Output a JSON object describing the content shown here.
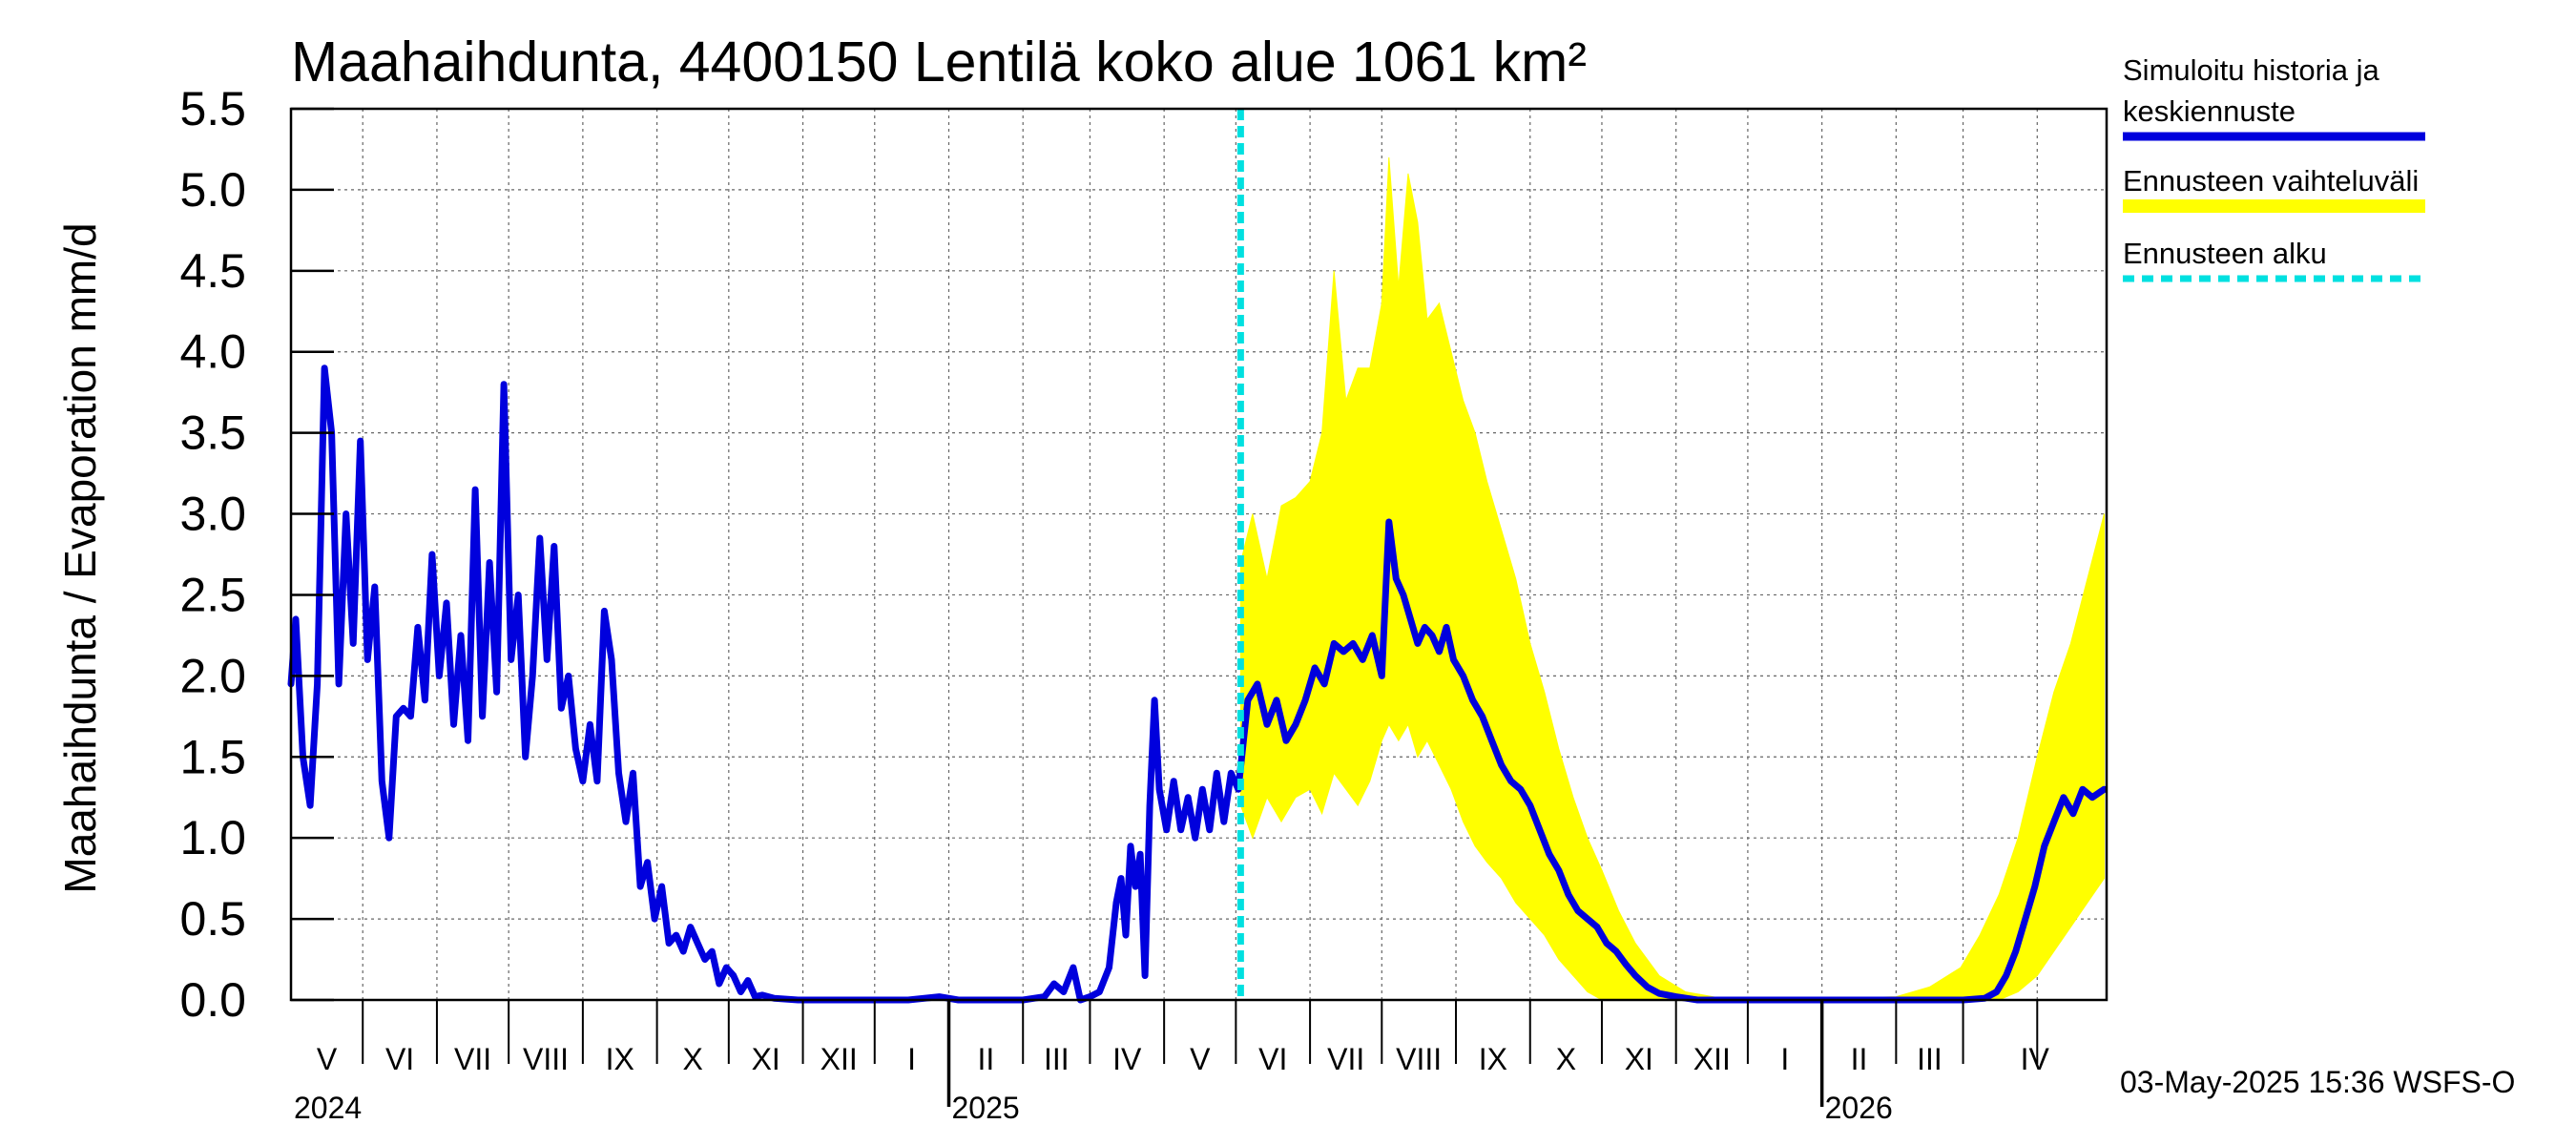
{
  "chart_data": {
    "type": "line",
    "title": "Maahaihdunta, 4400150 Lentilä koko alue 1061 km²",
    "ylabel": "Maahaihdunta / Evaporation   mm/d",
    "ylim": [
      0,
      5.5
    ],
    "yticks": [
      "0.0",
      "0.5",
      "1.0",
      "1.5",
      "2.0",
      "2.5",
      "3.0",
      "3.5",
      "4.0",
      "4.5",
      "5.0",
      "5.5"
    ],
    "xlim": [
      "2024-04-01",
      "2026-04-30"
    ],
    "grid": true,
    "month_labels": [
      "V",
      "VI",
      "VII",
      "VIII",
      "IX",
      "X",
      "XI",
      "XII",
      "I",
      "II",
      "III",
      "IV",
      "V",
      "VI",
      "VII",
      "VIII",
      "IX",
      "X",
      "XI",
      "XII",
      "I",
      "II",
      "III",
      "IV"
    ],
    "year_labels": [
      "2024",
      "2025",
      "2026"
    ],
    "forecast_start": "2025-05-03",
    "legend_position": "right",
    "legend": [
      {
        "label": "Simuloitu historia ja",
        "label2": "keskiennuste",
        "color": "#0000dd",
        "style": "solid"
      },
      {
        "label": "Ennusteen vaihteluväli",
        "color": "#ffff00",
        "style": "band"
      },
      {
        "label": "Ennusteen alku",
        "color": "#00e0e0",
        "style": "dashed"
      }
    ],
    "footer": "03-May-2025 15:36 WSFS-O",
    "series": [
      {
        "name": "Simuloitu historia ja keskiennuste",
        "points": [
          [
            "2024-04-01",
            1.95
          ],
          [
            "2024-04-03",
            2.35
          ],
          [
            "2024-04-06",
            1.5
          ],
          [
            "2024-04-09",
            1.2
          ],
          [
            "2024-04-12",
            1.95
          ],
          [
            "2024-04-15",
            3.9
          ],
          [
            "2024-04-18",
            3.5
          ],
          [
            "2024-04-21",
            1.95
          ],
          [
            "2024-04-24",
            3.0
          ],
          [
            "2024-04-27",
            2.2
          ],
          [
            "2024-04-30",
            3.45
          ],
          [
            "2024-05-03",
            2.1
          ],
          [
            "2024-05-06",
            2.55
          ],
          [
            "2024-05-09",
            1.35
          ],
          [
            "2024-05-12",
            1.0
          ],
          [
            "2024-05-15",
            1.75
          ],
          [
            "2024-05-18",
            1.8
          ],
          [
            "2024-05-21",
            1.75
          ],
          [
            "2024-05-24",
            2.3
          ],
          [
            "2024-05-27",
            1.85
          ],
          [
            "2024-05-30",
            2.75
          ],
          [
            "2024-06-02",
            2.0
          ],
          [
            "2024-06-05",
            2.45
          ],
          [
            "2024-06-08",
            1.7
          ],
          [
            "2024-06-11",
            2.25
          ],
          [
            "2024-06-14",
            1.6
          ],
          [
            "2024-06-17",
            3.15
          ],
          [
            "2024-06-20",
            1.75
          ],
          [
            "2024-06-23",
            2.7
          ],
          [
            "2024-06-26",
            1.9
          ],
          [
            "2024-06-29",
            3.8
          ],
          [
            "2024-07-02",
            2.1
          ],
          [
            "2024-07-05",
            2.5
          ],
          [
            "2024-07-08",
            1.5
          ],
          [
            "2024-07-11",
            2.0
          ],
          [
            "2024-07-14",
            2.85
          ],
          [
            "2024-07-17",
            2.1
          ],
          [
            "2024-07-20",
            2.8
          ],
          [
            "2024-07-23",
            1.8
          ],
          [
            "2024-07-26",
            2.0
          ],
          [
            "2024-07-29",
            1.55
          ],
          [
            "2024-08-01",
            1.35
          ],
          [
            "2024-08-04",
            1.7
          ],
          [
            "2024-08-07",
            1.35
          ],
          [
            "2024-08-10",
            2.4
          ],
          [
            "2024-08-13",
            2.1
          ],
          [
            "2024-08-16",
            1.4
          ],
          [
            "2024-08-19",
            1.1
          ],
          [
            "2024-08-22",
            1.4
          ],
          [
            "2024-08-25",
            0.7
          ],
          [
            "2024-08-28",
            0.85
          ],
          [
            "2024-08-31",
            0.5
          ],
          [
            "2024-09-03",
            0.7
          ],
          [
            "2024-09-06",
            0.35
          ],
          [
            "2024-09-09",
            0.4
          ],
          [
            "2024-09-12",
            0.3
          ],
          [
            "2024-09-15",
            0.45
          ],
          [
            "2024-09-18",
            0.35
          ],
          [
            "2024-09-21",
            0.25
          ],
          [
            "2024-09-24",
            0.3
          ],
          [
            "2024-09-27",
            0.1
          ],
          [
            "2024-09-30",
            0.2
          ],
          [
            "2024-10-03",
            0.15
          ],
          [
            "2024-10-06",
            0.05
          ],
          [
            "2024-10-09",
            0.12
          ],
          [
            "2024-10-12",
            0.02
          ],
          [
            "2024-10-15",
            0.03
          ],
          [
            "2024-10-20",
            0.01
          ],
          [
            "2024-10-30",
            0.0
          ],
          [
            "2024-11-15",
            0.0
          ],
          [
            "2024-12-01",
            0.0
          ],
          [
            "2024-12-15",
            0.0
          ],
          [
            "2024-12-28",
            0.02
          ],
          [
            "2025-01-05",
            0.0
          ],
          [
            "2025-01-20",
            0.0
          ],
          [
            "2025-02-01",
            0.0
          ],
          [
            "2025-02-10",
            0.02
          ],
          [
            "2025-02-14",
            0.1
          ],
          [
            "2025-02-18",
            0.05
          ],
          [
            "2025-02-22",
            0.2
          ],
          [
            "2025-02-25",
            0.0
          ],
          [
            "2025-03-01",
            0.02
          ],
          [
            "2025-03-05",
            0.05
          ],
          [
            "2025-03-09",
            0.2
          ],
          [
            "2025-03-12",
            0.6
          ],
          [
            "2025-03-14",
            0.75
          ],
          [
            "2025-03-16",
            0.4
          ],
          [
            "2025-03-18",
            0.95
          ],
          [
            "2025-03-20",
            0.7
          ],
          [
            "2025-03-22",
            0.9
          ],
          [
            "2025-03-24",
            0.15
          ],
          [
            "2025-03-26",
            1.2
          ],
          [
            "2025-03-28",
            1.85
          ],
          [
            "2025-03-30",
            1.3
          ],
          [
            "2025-04-02",
            1.05
          ],
          [
            "2025-04-05",
            1.35
          ],
          [
            "2025-04-08",
            1.05
          ],
          [
            "2025-04-11",
            1.25
          ],
          [
            "2025-04-14",
            1.0
          ],
          [
            "2025-04-17",
            1.3
          ],
          [
            "2025-04-20",
            1.05
          ],
          [
            "2025-04-23",
            1.4
          ],
          [
            "2025-04-26",
            1.1
          ],
          [
            "2025-04-29",
            1.4
          ],
          [
            "2025-05-02",
            1.3
          ],
          [
            "2025-05-06",
            1.85
          ],
          [
            "2025-05-10",
            1.95
          ],
          [
            "2025-05-14",
            1.7
          ],
          [
            "2025-05-18",
            1.85
          ],
          [
            "2025-05-22",
            1.6
          ],
          [
            "2025-05-26",
            1.7
          ],
          [
            "2025-05-30",
            1.85
          ],
          [
            "2025-06-03",
            2.05
          ],
          [
            "2025-06-07",
            1.95
          ],
          [
            "2025-06-11",
            2.2
          ],
          [
            "2025-06-15",
            2.15
          ],
          [
            "2025-06-19",
            2.2
          ],
          [
            "2025-06-23",
            2.1
          ],
          [
            "2025-06-27",
            2.25
          ],
          [
            "2025-07-01",
            2.0
          ],
          [
            "2025-07-04",
            2.95
          ],
          [
            "2025-07-07",
            2.6
          ],
          [
            "2025-07-10",
            2.5
          ],
          [
            "2025-07-13",
            2.35
          ],
          [
            "2025-07-16",
            2.2
          ],
          [
            "2025-07-19",
            2.3
          ],
          [
            "2025-07-22",
            2.25
          ],
          [
            "2025-07-25",
            2.15
          ],
          [
            "2025-07-28",
            2.3
          ],
          [
            "2025-07-31",
            2.1
          ],
          [
            "2025-08-04",
            2.0
          ],
          [
            "2025-08-08",
            1.85
          ],
          [
            "2025-08-12",
            1.75
          ],
          [
            "2025-08-16",
            1.6
          ],
          [
            "2025-08-20",
            1.45
          ],
          [
            "2025-08-24",
            1.35
          ],
          [
            "2025-08-28",
            1.3
          ],
          [
            "2025-09-01",
            1.2
          ],
          [
            "2025-09-05",
            1.05
          ],
          [
            "2025-09-09",
            0.9
          ],
          [
            "2025-09-13",
            0.8
          ],
          [
            "2025-09-17",
            0.65
          ],
          [
            "2025-09-21",
            0.55
          ],
          [
            "2025-09-25",
            0.5
          ],
          [
            "2025-09-29",
            0.45
          ],
          [
            "2025-10-03",
            0.35
          ],
          [
            "2025-10-07",
            0.3
          ],
          [
            "2025-10-11",
            0.22
          ],
          [
            "2025-10-15",
            0.15
          ],
          [
            "2025-10-20",
            0.08
          ],
          [
            "2025-10-25",
            0.04
          ],
          [
            "2025-11-01",
            0.02
          ],
          [
            "2025-11-10",
            0.0
          ],
          [
            "2025-12-01",
            0.0
          ],
          [
            "2026-01-01",
            0.0
          ],
          [
            "2026-02-01",
            0.0
          ],
          [
            "2026-03-01",
            0.0
          ],
          [
            "2026-03-10",
            0.01
          ],
          [
            "2026-03-15",
            0.05
          ],
          [
            "2026-03-19",
            0.15
          ],
          [
            "2026-03-23",
            0.3
          ],
          [
            "2026-03-27",
            0.5
          ],
          [
            "2026-03-31",
            0.7
          ],
          [
            "2026-04-04",
            0.95
          ],
          [
            "2026-04-08",
            1.1
          ],
          [
            "2026-04-12",
            1.25
          ],
          [
            "2026-04-16",
            1.15
          ],
          [
            "2026-04-20",
            1.3
          ],
          [
            "2026-04-24",
            1.25
          ],
          [
            "2026-04-29",
            1.3
          ]
        ]
      }
    ],
    "forecast_band": {
      "name": "Ennusteen vaihteluväli",
      "points": [
        [
          "2025-05-03",
          1.2,
          2.7
        ],
        [
          "2025-05-08",
          1.0,
          3.0
        ],
        [
          "2025-05-14",
          1.25,
          2.6
        ],
        [
          "2025-05-20",
          1.1,
          3.05
        ],
        [
          "2025-05-26",
          1.25,
          3.1
        ],
        [
          "2025-06-01",
          1.3,
          3.2
        ],
        [
          "2025-06-06",
          1.15,
          3.5
        ],
        [
          "2025-06-11",
          1.4,
          4.5
        ],
        [
          "2025-06-16",
          1.3,
          3.7
        ],
        [
          "2025-06-21",
          1.2,
          3.9
        ],
        [
          "2025-06-26",
          1.35,
          3.9
        ],
        [
          "2025-07-01",
          1.6,
          4.3
        ],
        [
          "2025-07-04",
          1.7,
          5.2
        ],
        [
          "2025-07-08",
          1.6,
          4.4
        ],
        [
          "2025-07-12",
          1.7,
          5.1
        ],
        [
          "2025-07-16",
          1.5,
          4.8
        ],
        [
          "2025-07-20",
          1.6,
          4.2
        ],
        [
          "2025-07-25",
          1.45,
          4.3
        ],
        [
          "2025-07-30",
          1.3,
          4.0
        ],
        [
          "2025-08-04",
          1.1,
          3.7
        ],
        [
          "2025-08-09",
          0.95,
          3.5
        ],
        [
          "2025-08-14",
          0.85,
          3.2
        ],
        [
          "2025-08-20",
          0.75,
          2.9
        ],
        [
          "2025-08-26",
          0.6,
          2.6
        ],
        [
          "2025-09-01",
          0.5,
          2.2
        ],
        [
          "2025-09-07",
          0.4,
          1.9
        ],
        [
          "2025-09-13",
          0.25,
          1.55
        ],
        [
          "2025-09-19",
          0.15,
          1.25
        ],
        [
          "2025-09-25",
          0.05,
          1.0
        ],
        [
          "2025-10-01",
          0.0,
          0.8
        ],
        [
          "2025-10-08",
          0.0,
          0.55
        ],
        [
          "2025-10-15",
          0.0,
          0.35
        ],
        [
          "2025-10-25",
          0.0,
          0.15
        ],
        [
          "2025-11-05",
          0.0,
          0.05
        ],
        [
          "2025-11-20",
          0.0,
          0.01
        ],
        [
          "2025-12-15",
          0.0,
          0.0
        ],
        [
          "2026-02-01",
          0.0,
          0.02
        ],
        [
          "2026-02-15",
          0.0,
          0.08
        ],
        [
          "2026-02-28",
          0.0,
          0.2
        ],
        [
          "2026-03-08",
          0.0,
          0.4
        ],
        [
          "2026-03-16",
          0.0,
          0.65
        ],
        [
          "2026-03-24",
          0.05,
          1.0
        ],
        [
          "2026-04-01",
          0.15,
          1.5
        ],
        [
          "2026-04-08",
          0.3,
          1.9
        ],
        [
          "2026-04-15",
          0.45,
          2.2
        ],
        [
          "2026-04-22",
          0.6,
          2.6
        ],
        [
          "2026-04-29",
          0.75,
          3.0
        ]
      ]
    }
  }
}
